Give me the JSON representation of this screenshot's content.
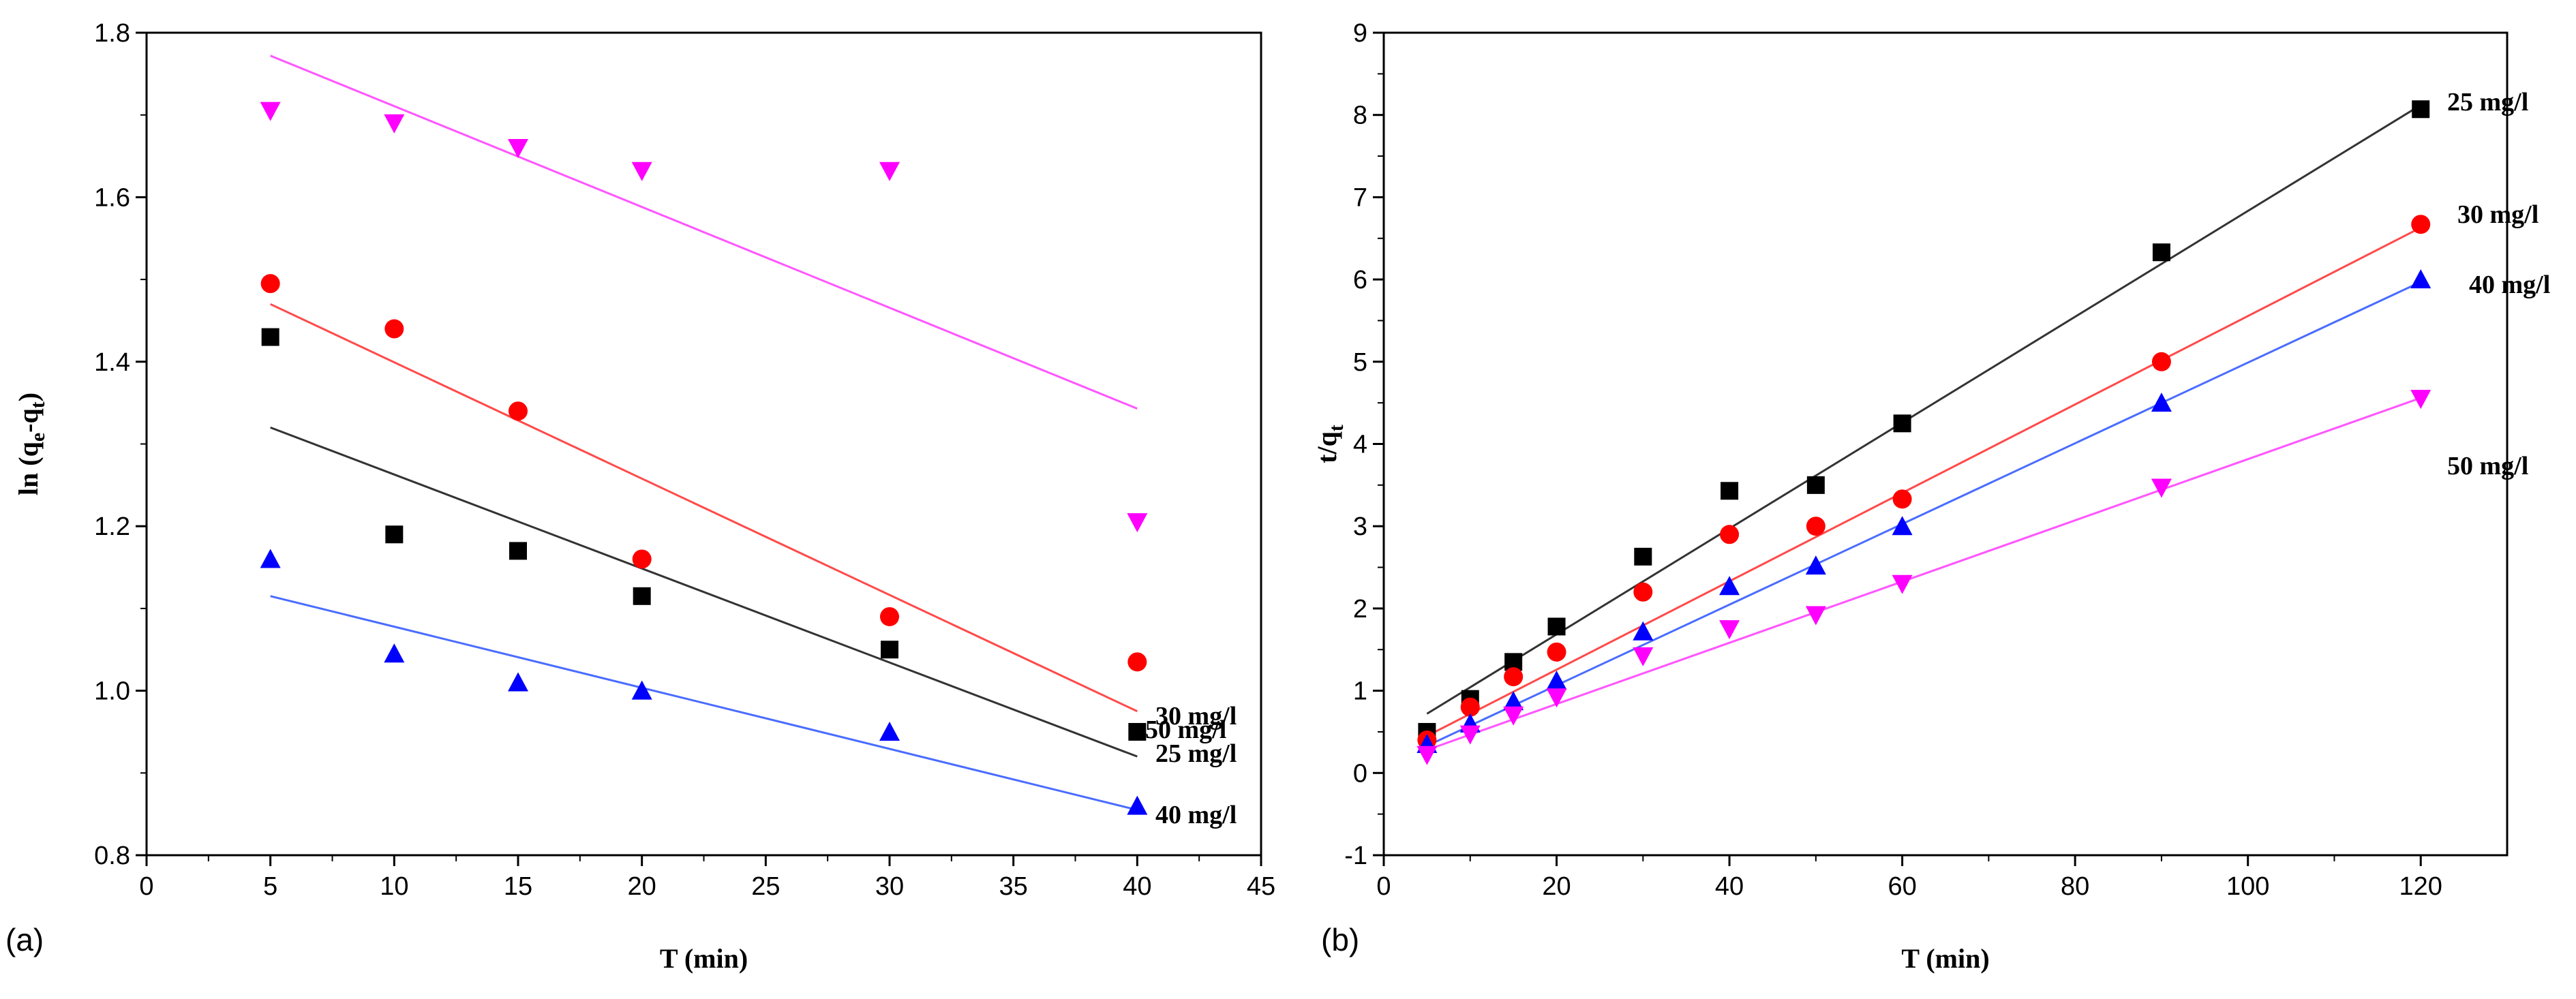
{
  "colors": {
    "25 mg/l": "#000000",
    "30 mg/l": "#ff0000",
    "40 mg/l": "#0000ff",
    "50 mg/l": "#ff00ff",
    "fit_25 mg/l": "#333333",
    "fit_30 mg/l": "#ff4a4a",
    "fit_40 mg/l": "#4a6cff",
    "fit_50 mg/l": "#ff55ff"
  },
  "chart_data": [
    {
      "type": "scatter",
      "panel_label": "(a)",
      "title": "",
      "xlabel": "T (min)",
      "ylabel": {
        "base": "ln (q",
        "sub1": "e",
        "mid": "-q",
        "sub2": "t",
        "end": ")"
      },
      "xlim": [
        0,
        45
      ],
      "ylim": [
        0.8,
        1.8
      ],
      "xticks": [
        0,
        5,
        10,
        15,
        20,
        25,
        30,
        35,
        40,
        45
      ],
      "yticks": [
        0.8,
        1.0,
        1.2,
        1.4,
        1.6,
        1.8
      ],
      "ytick_decimals": 1,
      "grid": false,
      "series": [
        {
          "name": "25 mg/l",
          "marker": "square",
          "x": [
            5,
            10,
            15,
            20,
            30,
            40
          ],
          "y": [
            1.43,
            1.19,
            1.17,
            1.115,
            1.05,
            0.95
          ],
          "fit": {
            "x": [
              5,
              40
            ],
            "y": [
              1.32,
              0.92
            ]
          }
        },
        {
          "name": "30 mg/l",
          "marker": "circle",
          "x": [
            5,
            10,
            15,
            20,
            30,
            40
          ],
          "y": [
            1.495,
            1.44,
            1.34,
            1.16,
            1.09,
            1.035
          ],
          "fit": {
            "x": [
              5,
              40
            ],
            "y": [
              1.47,
              0.975
            ]
          }
        },
        {
          "name": "40 mg/l",
          "marker": "triangle-up",
          "x": [
            5,
            10,
            15,
            20,
            30,
            40
          ],
          "y": [
            1.16,
            1.045,
            1.01,
            1.0,
            0.95,
            0.86
          ],
          "fit": {
            "x": [
              5,
              40
            ],
            "y": [
              1.115,
              0.855
            ]
          }
        },
        {
          "name": "50 mg/l",
          "marker": "triangle-down",
          "x": [
            5,
            10,
            15,
            20,
            30,
            40
          ],
          "y": [
            1.705,
            1.69,
            1.66,
            1.632,
            1.632,
            1.205
          ],
          "fit": {
            "x": [
              5,
              40
            ],
            "y": [
              1.772,
              1.343
            ]
          }
        }
      ]
    },
    {
      "type": "scatter",
      "panel_label": "(b)",
      "title": "",
      "xlabel": "T (min)",
      "ylabel": {
        "base": "t/q",
        "sub1": "t",
        "mid": "",
        "sub2": "",
        "end": ""
      },
      "xlim": [
        0,
        130
      ],
      "ylim": [
        -1,
        9
      ],
      "xticks": [
        0,
        20,
        40,
        60,
        80,
        100,
        120
      ],
      "yticks": [
        -1,
        0,
        1,
        2,
        3,
        4,
        5,
        6,
        7,
        8,
        9
      ],
      "ytick_decimals": 0,
      "grid": false,
      "series": [
        {
          "name": "25 mg/l",
          "marker": "square",
          "x": [
            5,
            10,
            15,
            20,
            30,
            40,
            50,
            60,
            90,
            120
          ],
          "y": [
            0.5,
            0.9,
            1.35,
            1.78,
            2.63,
            3.43,
            3.5,
            4.25,
            6.33,
            8.07
          ],
          "fit": {
            "x": [
              5,
              120
            ],
            "y": [
              0.72,
              8.12
            ]
          }
        },
        {
          "name": "30 mg/l",
          "marker": "circle",
          "x": [
            5,
            10,
            15,
            20,
            30,
            40,
            50,
            60,
            90,
            120
          ],
          "y": [
            0.4,
            0.8,
            1.17,
            1.47,
            2.2,
            2.9,
            3.0,
            3.33,
            5.0,
            6.67
          ],
          "fit": {
            "x": [
              5,
              120
            ],
            "y": [
              0.45,
              6.63
            ]
          }
        },
        {
          "name": "40 mg/l",
          "marker": "triangle-up",
          "x": [
            5,
            10,
            15,
            20,
            30,
            40,
            50,
            60,
            90,
            120
          ],
          "y": [
            0.35,
            0.6,
            0.87,
            1.12,
            1.72,
            2.27,
            2.52,
            3.0,
            4.5,
            6.0
          ],
          "fit": {
            "x": [
              5,
              120
            ],
            "y": [
              0.33,
              5.97
            ]
          }
        },
        {
          "name": "50 mg/l",
          "marker": "triangle-down",
          "x": [
            5,
            10,
            15,
            20,
            30,
            40,
            50,
            60,
            90,
            120
          ],
          "y": [
            0.22,
            0.47,
            0.7,
            0.92,
            1.42,
            1.75,
            1.92,
            2.3,
            3.47,
            4.55
          ],
          "fit": {
            "x": [
              5,
              120
            ],
            "y": [
              0.28,
              4.56
            ]
          }
        }
      ]
    }
  ]
}
